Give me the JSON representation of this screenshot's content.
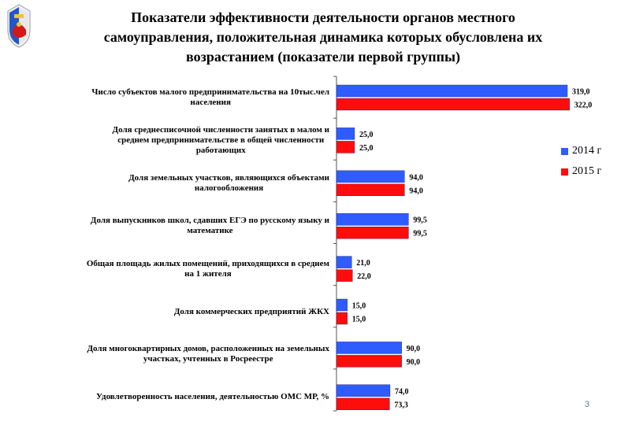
{
  "slide": {
    "title_lines": [
      "Показатели эффективности деятельности органов местного",
      "самоуправления, положительная динамика которых обусловлена их",
      "возрастанием (показатели первой группы)"
    ],
    "page_number": "3"
  },
  "colors": {
    "series_2014": "#2f5cff",
    "series_2015": "#ff0d0d",
    "axis": "#555555"
  },
  "chart_data": {
    "type": "bar",
    "orientation": "horizontal",
    "categories": [
      [
        "Число субъектов малого предпринимательства на 10тыс.чел",
        "населения"
      ],
      [
        "Доля среднесписочной численности занятых в малом и",
        "среднем предпринимательстве в общей численности",
        "работающих"
      ],
      [
        "Доля земельных участков, являющихся объектами",
        "налогообложения"
      ],
      [
        "Доля выпускников школ, сдавших ЕГЭ по русскому языку и",
        "математике"
      ],
      [
        "Общая площадь жилых помещений, приходящихся в среднем",
        "на 1 жителя"
      ],
      [
        "Доля коммерческих предприятий ЖКХ"
      ],
      [
        "Доля многоквартирных домов, расположенных на земельных",
        "участках, учтенных в Росреестре"
      ],
      [
        "Удовлетворенность населения, деятельностью ОМС МР, %"
      ]
    ],
    "series": [
      {
        "name": "2014 г",
        "values": [
          319.0,
          25.0,
          94.0,
          99.5,
          21.0,
          15.0,
          90.0,
          74.0
        ],
        "labels": [
          "319,0",
          "25,0",
          "94,0",
          "99,5",
          "21,0",
          "15,0",
          "90,0",
          "74,0"
        ]
      },
      {
        "name": "2015 г",
        "values": [
          322.0,
          25.0,
          94.0,
          99.5,
          22.0,
          15.0,
          90.0,
          73.3
        ],
        "labels": [
          "322,0",
          "25,0",
          "94,0",
          "99,5",
          "22,0",
          "15,0",
          "90,0",
          "73,3"
        ]
      }
    ],
    "xlim": [
      0,
      330
    ],
    "grid": false,
    "legend_position": "right"
  }
}
